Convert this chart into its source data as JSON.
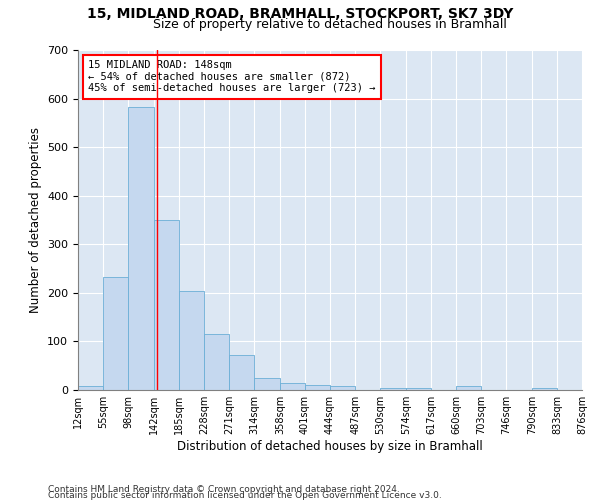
{
  "title1": "15, MIDLAND ROAD, BRAMHALL, STOCKPORT, SK7 3DY",
  "title2": "Size of property relative to detached houses in Bramhall",
  "xlabel": "Distribution of detached houses by size in Bramhall",
  "ylabel": "Number of detached properties",
  "property_size": 148,
  "annotation_line1": "15 MIDLAND ROAD: 148sqm",
  "annotation_line2": "← 54% of detached houses are smaller (872)",
  "annotation_line3": "45% of semi-detached houses are larger (723) →",
  "bar_color": "#c5d8ef",
  "bar_edge_color": "#6baed6",
  "vline_color": "red",
  "background_color": "#dce7f3",
  "grid_color": "#ffffff",
  "bin_edges": [
    12,
    55,
    98,
    142,
    185,
    228,
    271,
    314,
    358,
    401,
    444,
    487,
    530,
    574,
    617,
    660,
    703,
    746,
    790,
    833,
    876
  ],
  "bar_heights": [
    8,
    233,
    583,
    350,
    204,
    116,
    73,
    25,
    15,
    10,
    8,
    0,
    5,
    5,
    0,
    8,
    0,
    0,
    5,
    0
  ],
  "ylim": [
    0,
    700
  ],
  "yticks": [
    0,
    100,
    200,
    300,
    400,
    500,
    600,
    700
  ],
  "footnote1": "Contains HM Land Registry data © Crown copyright and database right 2024.",
  "footnote2": "Contains public sector information licensed under the Open Government Licence v3.0."
}
